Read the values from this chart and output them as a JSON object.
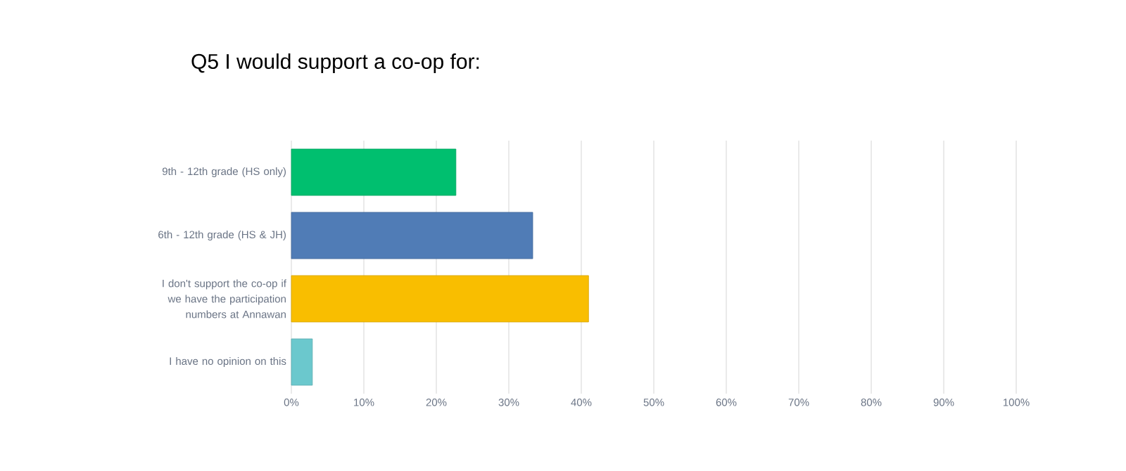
{
  "chart_data": {
    "type": "bar",
    "orientation": "horizontal",
    "title": "Q5 I would support a co-op for:",
    "categories": [
      "9th - 12th grade (HS only)",
      "6th - 12th grade (HS & JH)",
      "I don't support the co-op if we have the participation numbers at Annawan",
      "I have no opinion on this"
    ],
    "values": [
      22.7,
      33.3,
      41.0,
      2.9
    ],
    "colors": [
      "#00bf6f",
      "#507cb6",
      "#f9be00",
      "#6bc8cd"
    ],
    "xlim": [
      0,
      100
    ],
    "xticks": [
      {
        "value": 0,
        "label": "0%"
      },
      {
        "value": 10,
        "label": "10%"
      },
      {
        "value": 20,
        "label": "20%"
      },
      {
        "value": 30,
        "label": "30%"
      },
      {
        "value": 40,
        "label": "40%"
      },
      {
        "value": 50,
        "label": "50%"
      },
      {
        "value": 60,
        "label": "60%"
      },
      {
        "value": 70,
        "label": "70%"
      },
      {
        "value": 80,
        "label": "80%"
      },
      {
        "value": 90,
        "label": "90%"
      },
      {
        "value": 100,
        "label": "100%"
      }
    ],
    "grid": "x"
  }
}
